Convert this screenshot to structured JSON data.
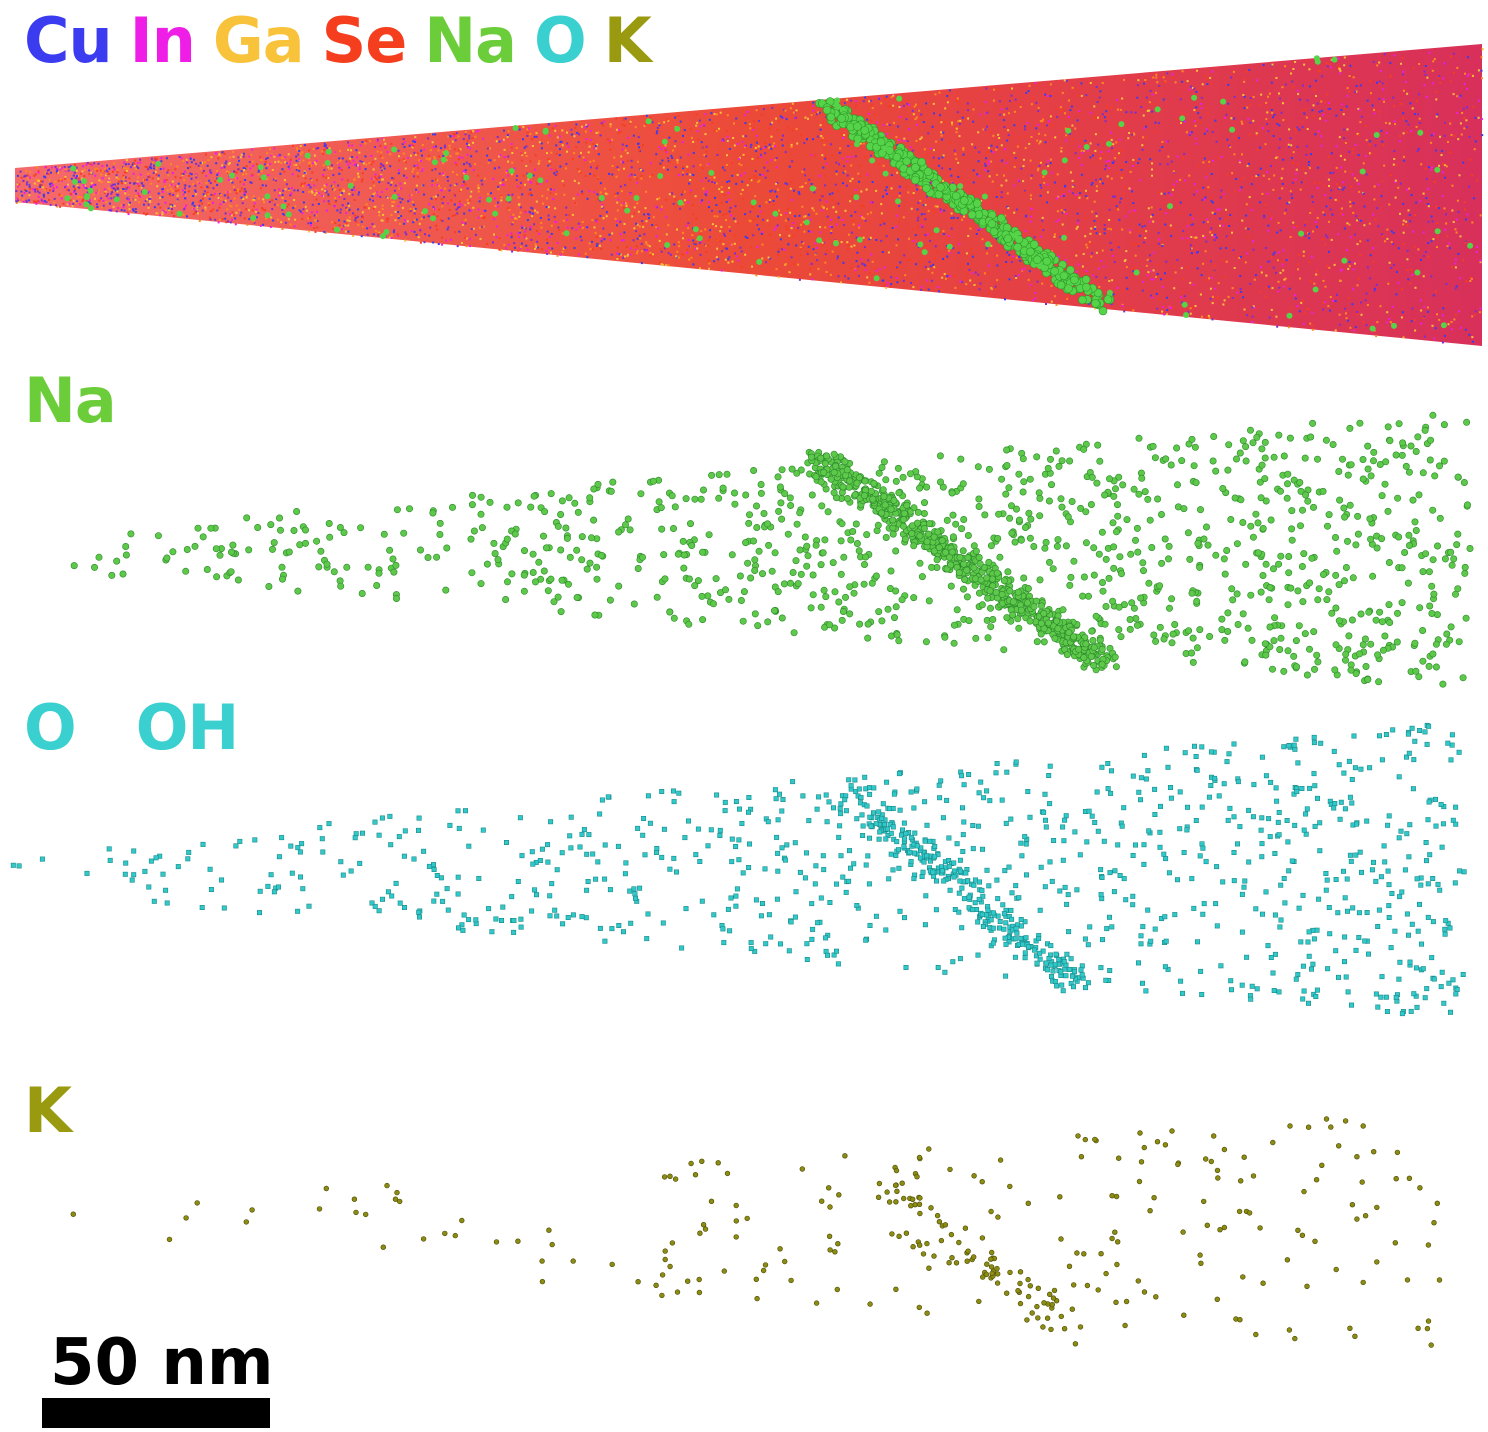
{
  "legend": [
    {
      "symbol": "Cu",
      "color": "#3b3bf0"
    },
    {
      "symbol": "In",
      "color": "#ee1ee6"
    },
    {
      "symbol": "Ga",
      "color": "#f8c23a"
    },
    {
      "symbol": "Se",
      "color": "#f53e1e"
    },
    {
      "symbol": "Na",
      "color": "#6ccd3a"
    },
    {
      "symbol": "O",
      "color": "#3ad0d0"
    },
    {
      "symbol": "K",
      "color": "#9a9a10"
    }
  ],
  "panels": {
    "na": {
      "label": "Na",
      "color": "#6ccd3a",
      "dot_color": "#5ec84a"
    },
    "o": {
      "label_o": "O",
      "label_oh": "OH",
      "color": "#3ad0d0",
      "dot_color": "#30c8c8"
    },
    "k": {
      "label": "K",
      "color": "#9a9a10",
      "dot_color": "#8c8c14"
    }
  },
  "scalebar": {
    "label": "50 nm"
  }
}
